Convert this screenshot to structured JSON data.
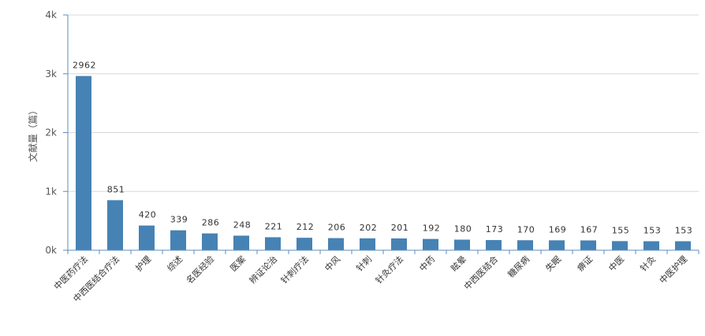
{
  "chart_data": {
    "type": "bar",
    "title": "",
    "xlabel": "",
    "ylabel": "文献量（篇）",
    "ylim": [
      0,
      4000
    ],
    "yticks": [
      {
        "value": 0,
        "label": "0k"
      },
      {
        "value": 1000,
        "label": "1k"
      },
      {
        "value": 2000,
        "label": "2k"
      },
      {
        "value": 3000,
        "label": "3k"
      },
      {
        "value": 4000,
        "label": "4k"
      }
    ],
    "grid": true,
    "legend": "none",
    "bar_color": "#4682b4",
    "categories": [
      "中医药疗法",
      "中西医结合疗法",
      "护理",
      "综述",
      "名医经验",
      "医案",
      "辨证论治",
      "针刺疗法",
      "中风",
      "针刺",
      "针灸疗法",
      "中药",
      "眩晕",
      "中西医结合",
      "糖尿病",
      "失眠",
      "痹证",
      "中医",
      "针灸",
      "中医护理"
    ],
    "values": [
      2962,
      851,
      420,
      339,
      286,
      248,
      221,
      212,
      206,
      202,
      201,
      192,
      180,
      173,
      170,
      169,
      167,
      155,
      153,
      153
    ]
  }
}
